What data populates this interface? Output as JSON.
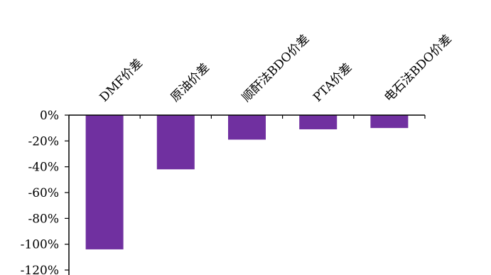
{
  "chart_data": {
    "type": "bar",
    "categories": [
      "DMF价差",
      "原油价差",
      "顺酐法BDO价差",
      "PTA价差",
      "电石法BDO价差"
    ],
    "values": [
      -104,
      -42,
      -19,
      -11,
      -10
    ],
    "yticks": [
      "0%",
      "-20%",
      "-40%",
      "-60%",
      "-80%",
      "-100%",
      "-120%"
    ],
    "ylim": [
      -120,
      0
    ],
    "bar_color": "#7030a0",
    "axis_color": "#000000",
    "grid": false,
    "legend": "none",
    "title": "",
    "xlabel": "",
    "ylabel": ""
  }
}
